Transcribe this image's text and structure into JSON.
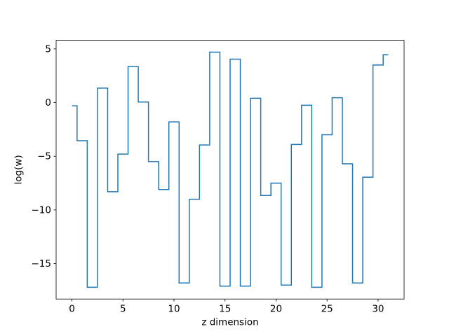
{
  "figure": {
    "background": "#ffffff",
    "axes_background": "#ffffff",
    "spine_color": "#000000",
    "text_color": "#000000"
  },
  "chart_data": {
    "type": "line",
    "step_mode": "mid",
    "title": "",
    "xlabel": "z dimension",
    "ylabel": "log(w)",
    "x": [
      0,
      1,
      2,
      3,
      4,
      5,
      6,
      7,
      8,
      9,
      10,
      11,
      12,
      13,
      14,
      15,
      16,
      17,
      18,
      19,
      20,
      21,
      22,
      23,
      24,
      25,
      26,
      27,
      28,
      29,
      30,
      31
    ],
    "values": [
      -0.3,
      -3.55,
      -17.2,
      1.35,
      -8.3,
      -4.8,
      3.35,
      0.05,
      -5.5,
      -8.1,
      -1.8,
      -16.8,
      -9.0,
      -3.95,
      4.7,
      -17.1,
      4.05,
      -17.1,
      0.4,
      -8.65,
      -7.5,
      -17.0,
      -3.9,
      -0.25,
      -17.2,
      -3.0,
      0.45,
      -5.7,
      -16.8,
      -6.95,
      3.5,
      4.45
    ],
    "xlim": [
      -1.55,
      32.55
    ],
    "ylim": [
      -18.3,
      5.8
    ],
    "x_ticks": [
      0,
      5,
      10,
      15,
      20,
      25,
      30
    ],
    "x_tick_labels": [
      "0",
      "5",
      "10",
      "15",
      "20",
      "25",
      "30"
    ],
    "y_ticks": [
      5,
      0,
      -5,
      -10,
      -15
    ],
    "y_tick_labels": [
      "5",
      "0",
      "−5",
      "−10",
      "−15"
    ],
    "line_color": "#1f77b4",
    "line_width": 1.5,
    "grid": false,
    "legend": null
  }
}
